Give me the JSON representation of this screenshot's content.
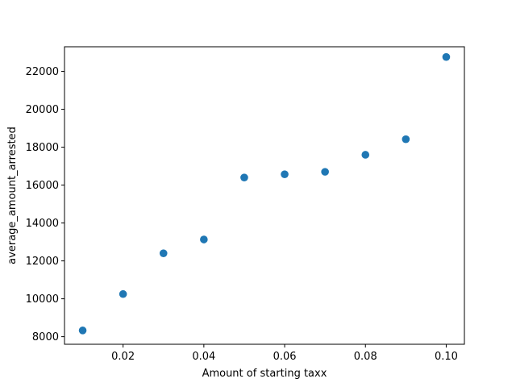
{
  "chart_data": {
    "type": "scatter",
    "title": "",
    "xlabel": "Amount of starting taxx",
    "ylabel": "average_amount_arrested",
    "xlim": [
      0.0055,
      0.1045
    ],
    "ylim": [
      7600,
      23300
    ],
    "x_ticks": [
      0.02,
      0.04,
      0.06,
      0.08,
      0.1
    ],
    "x_tick_labels": [
      "0.02",
      "0.04",
      "0.06",
      "0.08",
      "0.10"
    ],
    "y_ticks": [
      8000,
      10000,
      12000,
      14000,
      16000,
      18000,
      20000,
      22000
    ],
    "y_tick_labels": [
      "8000",
      "10000",
      "12000",
      "14000",
      "16000",
      "18000",
      "20000",
      "22000"
    ],
    "grid": false,
    "marker_color": "#1f77b4",
    "series": [
      {
        "x": [
          0.01,
          0.02,
          0.03,
          0.04,
          0.05,
          0.06,
          0.07,
          0.08,
          0.09,
          0.1
        ],
        "y": [
          8330,
          10250,
          12400,
          13130,
          16400,
          16570,
          16700,
          17600,
          18420,
          22760
        ]
      }
    ]
  }
}
